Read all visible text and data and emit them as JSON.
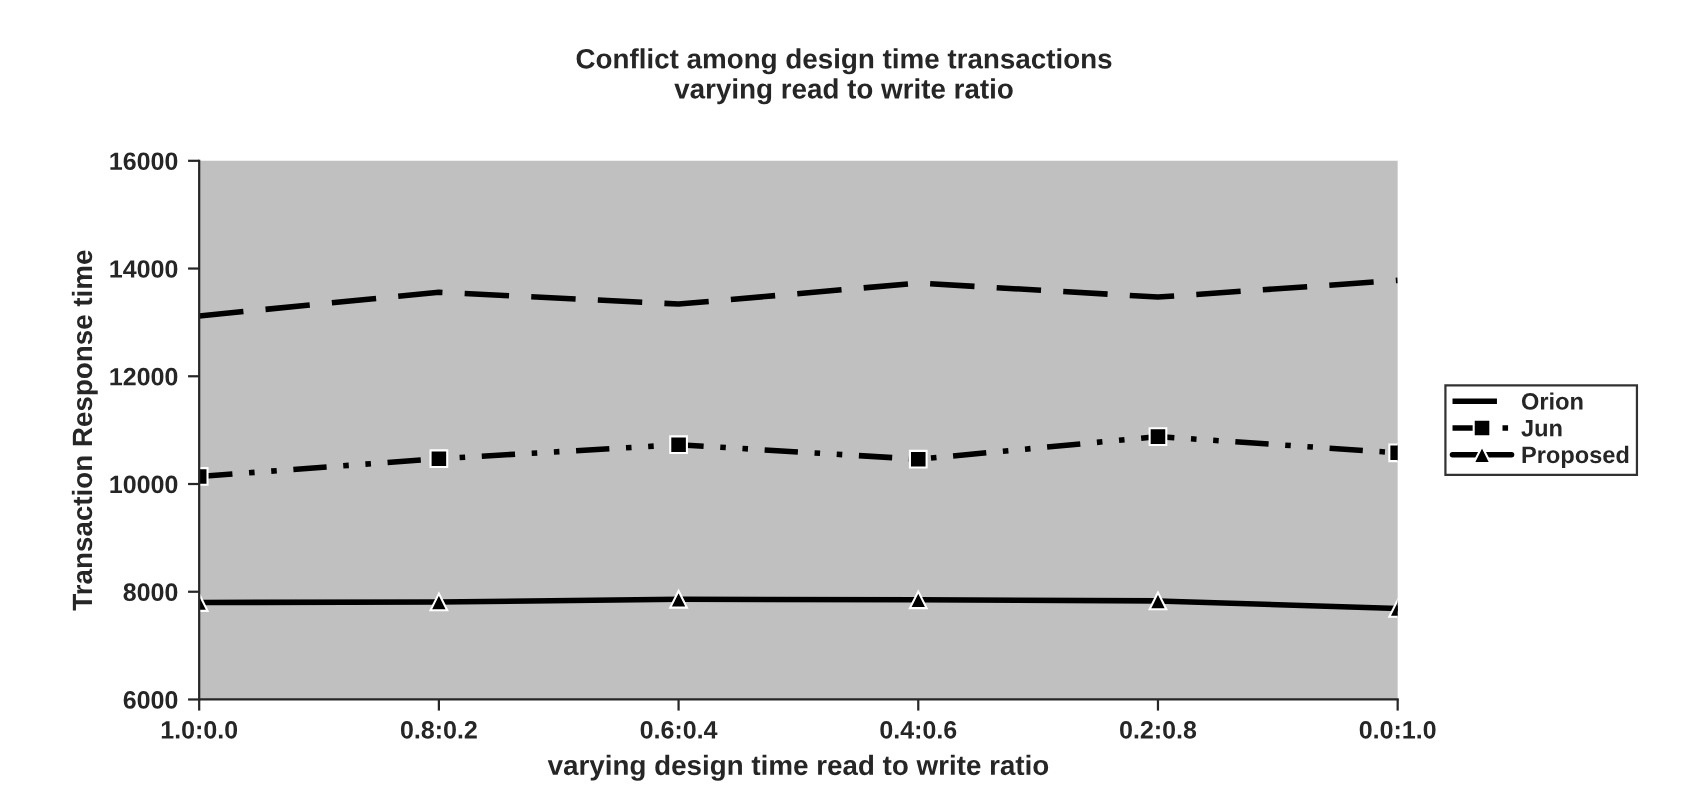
{
  "chart_data": {
    "type": "line",
    "title": "Conflict among design time transactions\nvarying read to write ratio",
    "xlabel": "varying design time read to write ratio",
    "ylabel": "Transaction Response time",
    "categories": [
      "1.0:0.0",
      "0.8:0.2",
      "0.6:0.4",
      "0.4:0.6",
      "0.2:0.8",
      "0.0:1.0"
    ],
    "series": [
      {
        "name": "Orion",
        "color": "#000000",
        "line_style": "dashed",
        "marker": "none",
        "values": [
          13120,
          13560,
          13340,
          13730,
          13470,
          13780
        ]
      },
      {
        "name": "Jun",
        "color": "#000000",
        "line_style": "dotted",
        "marker": "square",
        "values": [
          10140,
          10470,
          10730,
          10460,
          10880,
          10580
        ]
      },
      {
        "name": "Proposed",
        "color": "#000000",
        "line_style": "solid",
        "marker": "triangle",
        "values": [
          7800,
          7810,
          7860,
          7850,
          7830,
          7690
        ]
      }
    ],
    "ylim": [
      6000,
      16000
    ],
    "yticks": [
      6000,
      8000,
      10000,
      12000,
      14000,
      16000
    ],
    "grid": false,
    "legend": "right"
  }
}
